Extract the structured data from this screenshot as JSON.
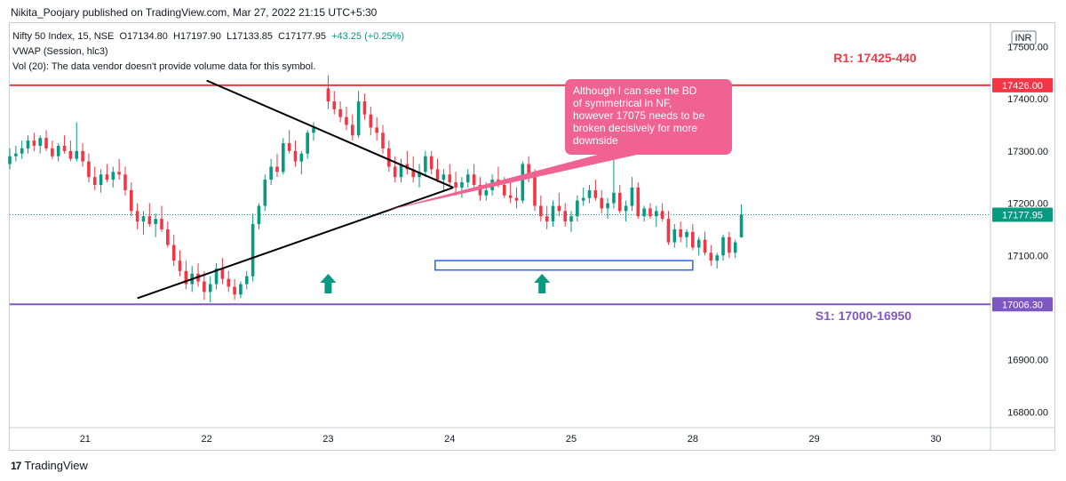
{
  "header": {
    "publish_line": "Nikita_Poojary published on TradingView.com, Mar 27, 2022 21:15 UTC+5:30"
  },
  "legend": {
    "symbol": "Nifty 50 Index, 15, NSE",
    "open": "O17134.80",
    "high": "H17197.90",
    "low": "L17133.85",
    "close": "C17177.95",
    "change": "+43.25 (+0.25%)",
    "vwap": "VWAP (Session, hlc3)",
    "vol": "Vol (20): The data vendor doesn't provide volume data for this symbol."
  },
  "footer": {
    "brand": "TradingView",
    "logo": "17"
  },
  "colors": {
    "up": "#089981",
    "down": "#f23645",
    "resistance": "#f23645",
    "support": "#7e57c2",
    "callout": "#f06292",
    "box": "#2962ff"
  },
  "chart_data": {
    "type": "candlestick",
    "currency": "INR",
    "y_ticks": [
      17500,
      17400,
      17300,
      17200,
      17100,
      16900,
      16800
    ],
    "y_tick_labels": [
      "17500.00",
      "17400.00",
      "17300.00",
      "17200.00",
      "17100.00",
      "16900.00",
      "16800.00"
    ],
    "ylim": [
      16770,
      17545
    ],
    "x_labels": [
      "21",
      "22",
      "23",
      "24",
      "25",
      "28",
      "29",
      "30"
    ],
    "x_label_days": [
      0,
      1,
      2,
      3,
      4,
      5,
      6,
      7
    ],
    "xlim": [
      -0.62,
      7.45
    ],
    "last_price": 17177.95,
    "last_price_label": "17177.95",
    "resistance": {
      "price": 17426.0,
      "price_label": "17426.00",
      "label": "R1: 17425-440"
    },
    "support": {
      "price": 17006.3,
      "price_label": "17006.30",
      "label": "S1: 17000-16950"
    },
    "triangle": {
      "upper": [
        [
          1.0,
          17435
        ],
        [
          3.03,
          17230
        ]
      ],
      "lower": [
        [
          0.43,
          17018
        ],
        [
          3.03,
          17230
        ]
      ]
    },
    "demand_zone": {
      "x": [
        2.88,
        5.0
      ],
      "y": [
        17072,
        17090
      ]
    },
    "arrows": [
      2.0,
      3.76
    ],
    "annotation": {
      "text": "Although I can see the BD of symmetrical in NF, however 17075 needs to be broken decisively for more downside",
      "anchor": [
        2.46,
        17185
      ]
    },
    "candles": [
      [
        -0.62,
        17275,
        17305,
        17265,
        17290
      ],
      [
        -0.57,
        17290,
        17310,
        17280,
        17295
      ],
      [
        -0.52,
        17295,
        17320,
        17285,
        17305
      ],
      [
        -0.47,
        17305,
        17330,
        17295,
        17320
      ],
      [
        -0.42,
        17320,
        17335,
        17300,
        17310
      ],
      [
        -0.37,
        17310,
        17330,
        17295,
        17325
      ],
      [
        -0.32,
        17325,
        17340,
        17300,
        17305
      ],
      [
        -0.27,
        17305,
        17320,
        17285,
        17290
      ],
      [
        -0.22,
        17290,
        17315,
        17280,
        17310
      ],
      [
        -0.17,
        17310,
        17330,
        17295,
        17300
      ],
      [
        -0.12,
        17300,
        17320,
        17280,
        17285
      ],
      [
        -0.07,
        17285,
        17355,
        17280,
        17300
      ],
      [
        -0.02,
        17300,
        17315,
        17270,
        17280
      ],
      [
        0.03,
        17280,
        17295,
        17240,
        17250
      ],
      [
        0.08,
        17250,
        17270,
        17225,
        17235
      ],
      [
        0.13,
        17235,
        17265,
        17220,
        17255
      ],
      [
        0.18,
        17255,
        17275,
        17240,
        17245
      ],
      [
        0.23,
        17245,
        17270,
        17230,
        17260
      ],
      [
        0.28,
        17260,
        17285,
        17245,
        17255
      ],
      [
        0.33,
        17255,
        17270,
        17215,
        17225
      ],
      [
        0.38,
        17225,
        17240,
        17175,
        17185
      ],
      [
        0.43,
        17185,
        17200,
        17150,
        17165
      ],
      [
        0.48,
        17165,
        17185,
        17140,
        17175
      ],
      [
        0.53,
        17175,
        17200,
        17155,
        17160
      ],
      [
        0.58,
        17160,
        17180,
        17135,
        17170
      ],
      [
        0.63,
        17170,
        17195,
        17145,
        17150
      ],
      [
        0.68,
        17150,
        17165,
        17115,
        17120
      ],
      [
        0.73,
        17120,
        17140,
        17080,
        17090
      ],
      [
        0.78,
        17090,
        17110,
        17060,
        17070
      ],
      [
        0.83,
        17070,
        17090,
        17035,
        17045
      ],
      [
        0.88,
        17045,
        17080,
        17030,
        17065
      ],
      [
        0.93,
        17065,
        17085,
        17040,
        17050
      ],
      [
        0.98,
        17050,
        17070,
        17015,
        17030
      ],
      [
        1.03,
        17030,
        17060,
        17010,
        17045
      ],
      [
        1.08,
        17045,
        17085,
        17035,
        17075
      ],
      [
        1.13,
        17075,
        17095,
        17045,
        17055
      ],
      [
        1.18,
        17055,
        17070,
        17030,
        17040
      ],
      [
        1.23,
        17040,
        17055,
        17015,
        17025
      ],
      [
        1.28,
        17025,
        17050,
        17018,
        17045
      ],
      [
        1.33,
        17045,
        17070,
        17035,
        17060
      ],
      [
        1.38,
        17060,
        17180,
        17050,
        17160
      ],
      [
        1.43,
        17160,
        17200,
        17150,
        17195
      ],
      [
        1.48,
        17195,
        17255,
        17185,
        17245
      ],
      [
        1.53,
        17245,
        17285,
        17235,
        17270
      ],
      [
        1.58,
        17270,
        17295,
        17250,
        17260
      ],
      [
        1.63,
        17260,
        17325,
        17255,
        17315
      ],
      [
        1.68,
        17315,
        17340,
        17295,
        17300
      ],
      [
        1.73,
        17300,
        17320,
        17270,
        17280
      ],
      [
        1.78,
        17280,
        17300,
        17255,
        17295
      ],
      [
        1.83,
        17295,
        17340,
        17285,
        17335
      ],
      [
        1.88,
        17335,
        17355,
        17320,
        17345
      ],
      [
        2.0,
        17420,
        17445,
        17380,
        17395
      ],
      [
        2.05,
        17395,
        17415,
        17370,
        17380
      ],
      [
        2.1,
        17380,
        17395,
        17355,
        17365
      ],
      [
        2.15,
        17365,
        17385,
        17340,
        17350
      ],
      [
        2.2,
        17350,
        17370,
        17320,
        17330
      ],
      [
        2.25,
        17330,
        17415,
        17325,
        17395
      ],
      [
        2.3,
        17395,
        17410,
        17360,
        17370
      ],
      [
        2.35,
        17370,
        17385,
        17330,
        17345
      ],
      [
        2.4,
        17345,
        17365,
        17320,
        17335
      ],
      [
        2.45,
        17335,
        17350,
        17295,
        17305
      ],
      [
        2.5,
        17305,
        17320,
        17260,
        17270
      ],
      [
        2.55,
        17270,
        17290,
        17240,
        17250
      ],
      [
        2.6,
        17250,
        17285,
        17240,
        17275
      ],
      [
        2.65,
        17275,
        17300,
        17255,
        17265
      ],
      [
        2.7,
        17265,
        17290,
        17240,
        17250
      ],
      [
        2.75,
        17250,
        17275,
        17230,
        17260
      ],
      [
        2.8,
        17260,
        17300,
        17250,
        17290
      ],
      [
        2.85,
        17290,
        17300,
        17255,
        17265
      ],
      [
        2.9,
        17265,
        17285,
        17240,
        17245
      ],
      [
        2.95,
        17245,
        17265,
        17225,
        17255
      ],
      [
        3.0,
        17255,
        17275,
        17235,
        17240
      ],
      [
        3.05,
        17240,
        17260,
        17215,
        17230
      ],
      [
        3.1,
        17230,
        17250,
        17210,
        17240
      ],
      [
        3.15,
        17240,
        17265,
        17230,
        17255
      ],
      [
        3.2,
        17255,
        17275,
        17230,
        17235
      ],
      [
        3.25,
        17235,
        17250,
        17205,
        17215
      ],
      [
        3.3,
        17215,
        17240,
        17205,
        17225
      ],
      [
        3.35,
        17225,
        17255,
        17215,
        17245
      ],
      [
        3.4,
        17245,
        17270,
        17230,
        17235
      ],
      [
        3.45,
        17235,
        17250,
        17210,
        17215
      ],
      [
        3.5,
        17215,
        17240,
        17200,
        17210
      ],
      [
        3.55,
        17210,
        17230,
        17190,
        17205
      ],
      [
        3.6,
        17205,
        17280,
        17200,
        17275
      ],
      [
        3.65,
        17275,
        17290,
        17240,
        17250
      ],
      [
        3.7,
        17250,
        17265,
        17185,
        17195
      ],
      [
        3.75,
        17195,
        17215,
        17165,
        17175
      ],
      [
        3.8,
        17175,
        17195,
        17150,
        17165
      ],
      [
        3.85,
        17165,
        17205,
        17155,
        17195
      ],
      [
        3.9,
        17195,
        17220,
        17175,
        17185
      ],
      [
        3.95,
        17185,
        17200,
        17155,
        17165
      ],
      [
        4.0,
        17165,
        17185,
        17145,
        17175
      ],
      [
        4.05,
        17175,
        17215,
        17165,
        17205
      ],
      [
        4.1,
        17205,
        17230,
        17195,
        17210
      ],
      [
        4.15,
        17210,
        17235,
        17200,
        17225
      ],
      [
        4.2,
        17225,
        17245,
        17205,
        17210
      ],
      [
        4.25,
        17210,
        17225,
        17180,
        17190
      ],
      [
        4.3,
        17190,
        17210,
        17170,
        17200
      ],
      [
        4.35,
        17200,
        17305,
        17190,
        17220
      ],
      [
        4.4,
        17220,
        17235,
        17180,
        17185
      ],
      [
        4.45,
        17185,
        17205,
        17165,
        17195
      ],
      [
        4.5,
        17195,
        17250,
        17185,
        17230
      ],
      [
        4.55,
        17230,
        17240,
        17170,
        17175
      ],
      [
        4.6,
        17175,
        17195,
        17165,
        17190
      ],
      [
        4.65,
        17190,
        17200,
        17170,
        17175
      ],
      [
        4.7,
        17175,
        17195,
        17155,
        17185
      ],
      [
        4.75,
        17185,
        17200,
        17165,
        17170
      ],
      [
        4.8,
        17170,
        17185,
        17120,
        17125
      ],
      [
        4.85,
        17125,
        17160,
        17115,
        17150
      ],
      [
        4.9,
        17150,
        17165,
        17125,
        17135
      ],
      [
        4.95,
        17135,
        17150,
        17115,
        17145
      ],
      [
        5.0,
        17145,
        17160,
        17110,
        17115
      ],
      [
        5.05,
        17115,
        17135,
        17100,
        17130
      ],
      [
        5.1,
        17130,
        17145,
        17100,
        17105
      ],
      [
        5.15,
        17105,
        17120,
        17080,
        17090
      ],
      [
        5.2,
        17090,
        17105,
        17075,
        17100
      ],
      [
        5.25,
        17100,
        17140,
        17090,
        17135
      ],
      [
        5.3,
        17135,
        17145,
        17095,
        17105
      ],
      [
        5.35,
        17105,
        17130,
        17095,
        17125
      ],
      [
        5.4,
        17134.8,
        17197.9,
        17133.85,
        17177.95
      ]
    ]
  }
}
